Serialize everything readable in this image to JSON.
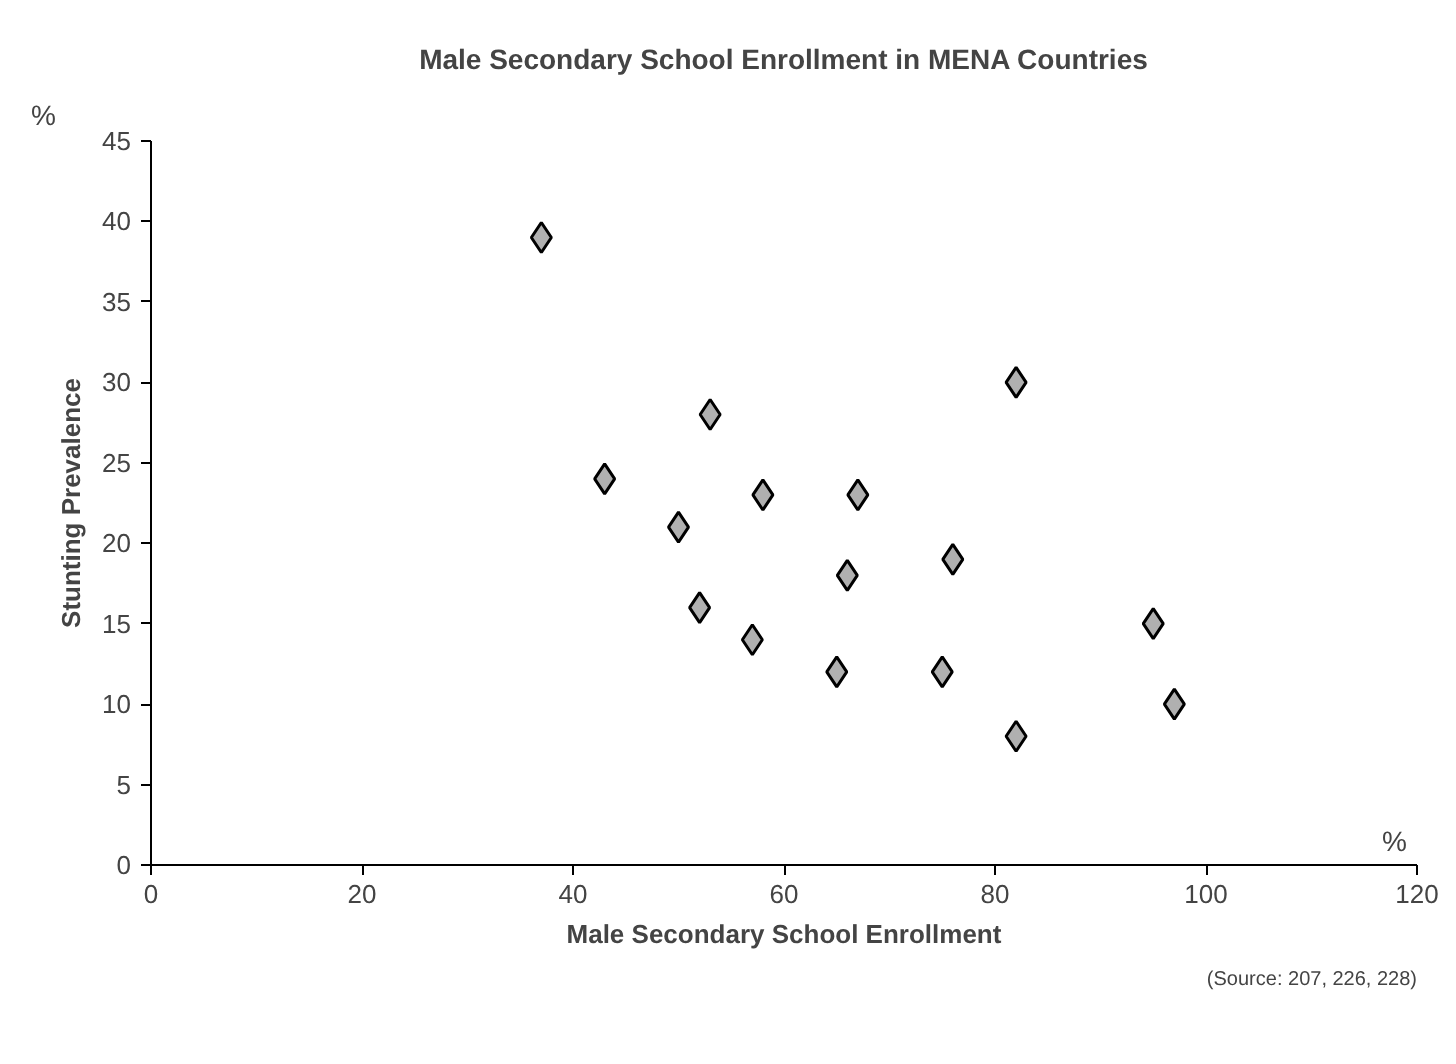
{
  "chart_data": {
    "type": "scatter",
    "title": "Male Secondary School Enrollment in MENA Countries",
    "xlabel": "Male Secondary School Enrollment",
    "ylabel": "Stunting Prevalence",
    "x": [
      37,
      43,
      50,
      52,
      53,
      57,
      58,
      65,
      66,
      67,
      75,
      76,
      82,
      82,
      95,
      97
    ],
    "values": [
      39,
      24,
      21,
      16,
      28,
      14,
      23,
      12,
      18,
      23,
      12,
      19,
      30,
      8,
      15,
      10
    ],
    "color": "#b0b0b0",
    "marker": "diamond",
    "xlim": [
      0,
      120
    ],
    "xticks": [
      0,
      20,
      40,
      60,
      80,
      100,
      120
    ],
    "ylim": [
      0,
      45
    ],
    "yticks": [
      0,
      5,
      10,
      15,
      20,
      25,
      30,
      35,
      40,
      45
    ],
    "grid": false,
    "annotations": [
      "%",
      "%",
      "(Source: 207, 226, 228)"
    ]
  }
}
